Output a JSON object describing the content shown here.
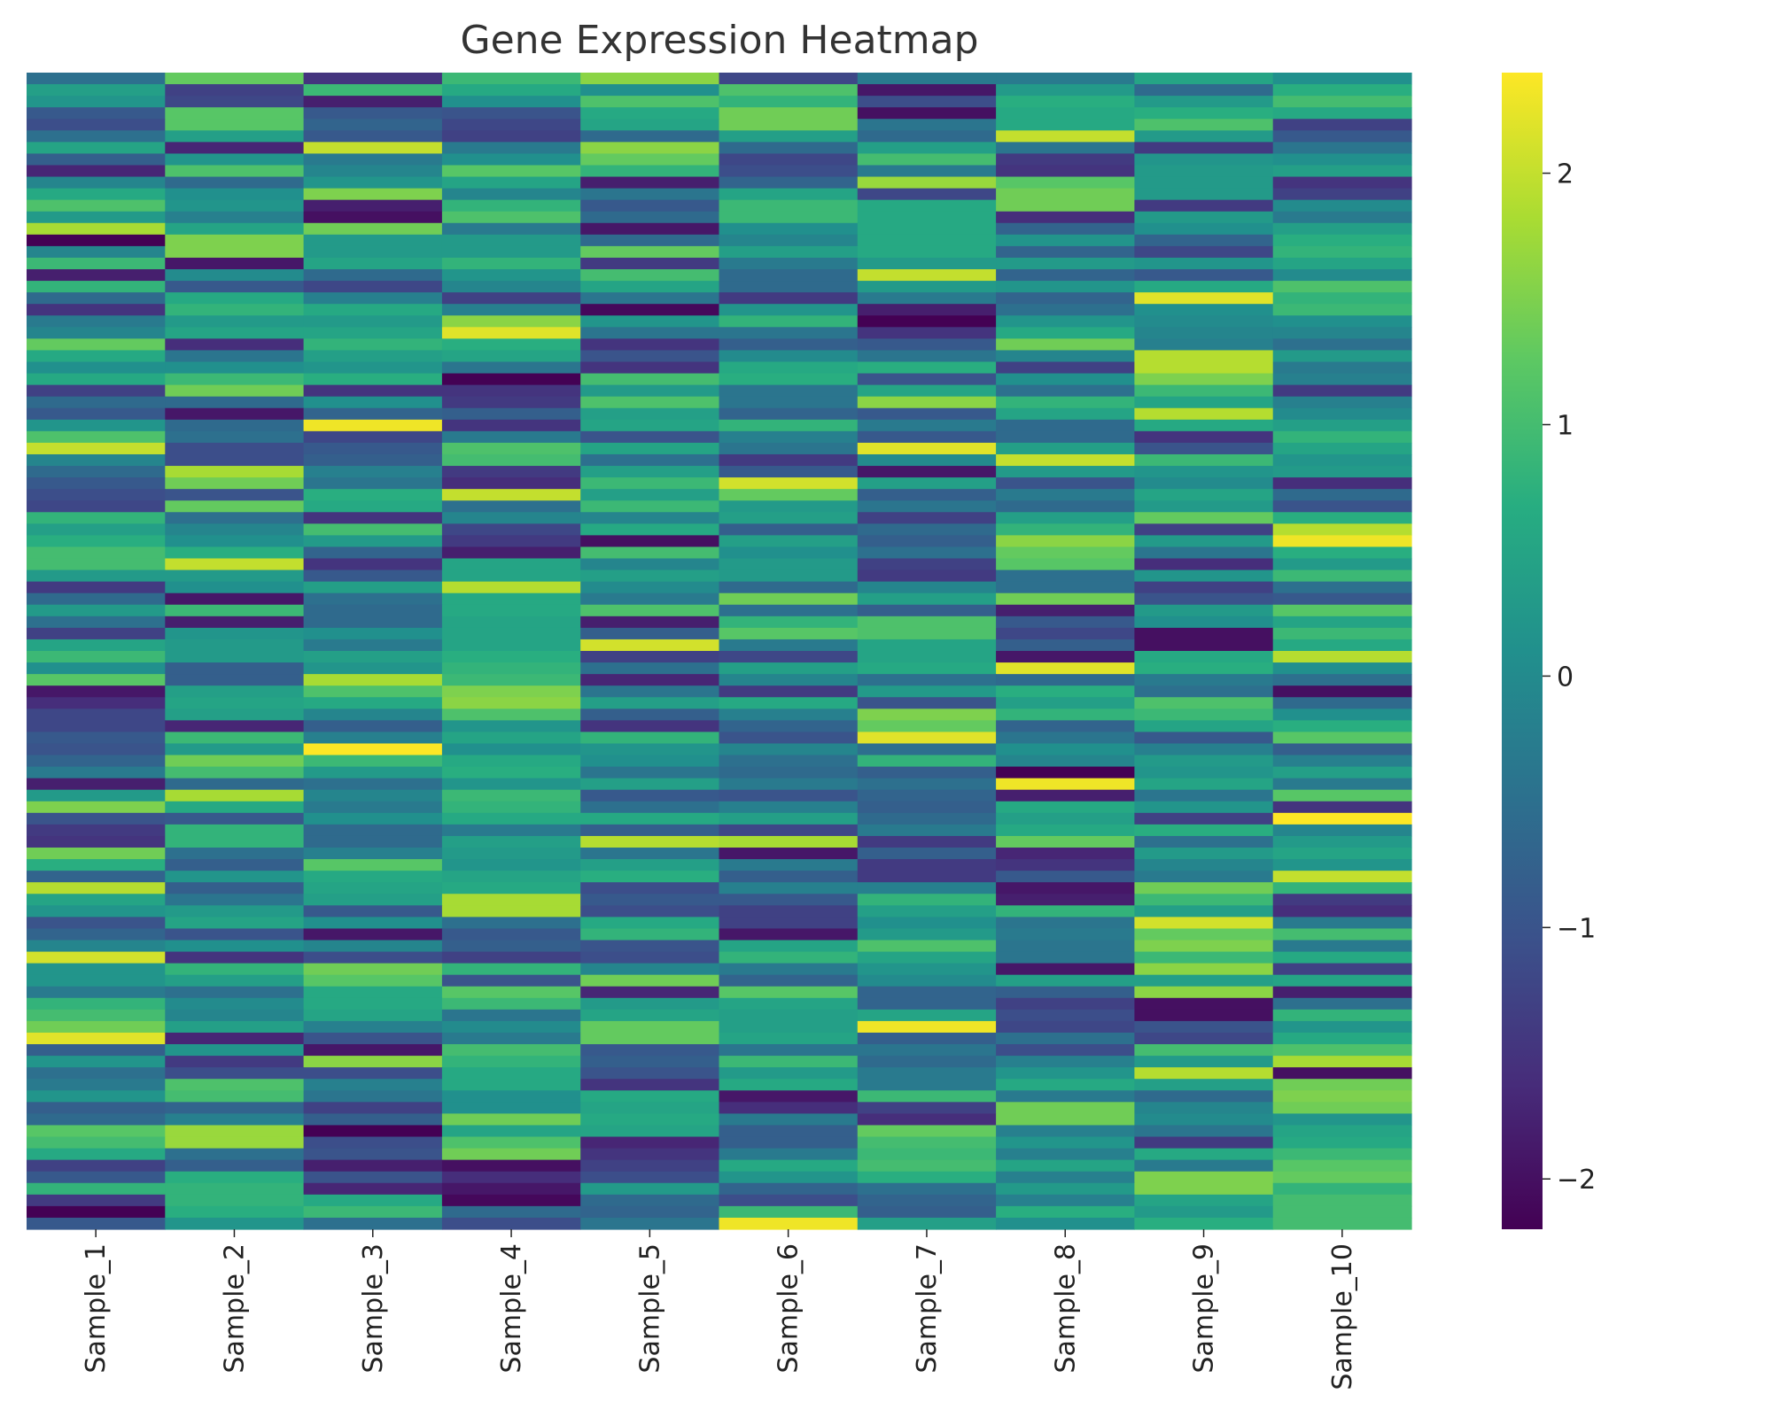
{
  "chart_data": {
    "type": "heatmap",
    "title": "Gene Expression Heatmap",
    "xlabel": "",
    "ylabel": "",
    "colormap": "viridis",
    "colorbar": {
      "vmin": -2.2,
      "vmax": 2.4,
      "ticks": [
        {
          "value": 2,
          "label": "2"
        },
        {
          "value": 1,
          "label": "1"
        },
        {
          "value": 0,
          "label": "0"
        },
        {
          "value": -1,
          "label": "−1"
        },
        {
          "value": -2,
          "label": "−2"
        }
      ]
    },
    "columns": [
      "Sample_1",
      "Sample_2",
      "Sample_3",
      "Sample_4",
      "Sample_5",
      "Sample_6",
      "Sample_7",
      "Sample_8",
      "Sample_9",
      "Sample_10"
    ],
    "row_count": 100,
    "values": [
      [
        -0.5,
        1.3,
        -1.5,
        0.9,
        1.6,
        -1.2,
        -0.3,
        -0.3,
        0.5,
        0.1
      ],
      [
        0.4,
        -1.3,
        0.9,
        0.6,
        0.1,
        1.1,
        -1.9,
        0.3,
        -0.6,
        0.7
      ],
      [
        0.2,
        -1.2,
        -1.8,
        0.1,
        1.1,
        0.8,
        -1.1,
        0.7,
        0.3,
        1.0
      ],
      [
        -0.9,
        1.2,
        -0.9,
        -1.0,
        0.6,
        1.4,
        -2.0,
        0.6,
        0.7,
        0.6
      ],
      [
        -1.1,
        1.2,
        -0.7,
        -1.2,
        0.5,
        1.4,
        -0.4,
        0.6,
        1.1,
        -1.3
      ],
      [
        -0.5,
        0.4,
        -0.9,
        -1.3,
        -0.6,
        0.4,
        -0.6,
        2.0,
        0.3,
        -0.9
      ],
      [
        0.5,
        -1.7,
        2.0,
        -0.3,
        1.6,
        -0.6,
        0.4,
        -0.4,
        -1.4,
        -0.4
      ],
      [
        -0.8,
        0.2,
        -0.3,
        0.1,
        1.3,
        -1.2,
        1.0,
        -1.4,
        0.2,
        0.1
      ],
      [
        -1.7,
        1.1,
        -0.1,
        1.2,
        0.8,
        -1.1,
        -0.3,
        -1.5,
        0.3,
        0.4
      ],
      [
        -0.1,
        -0.6,
        0.2,
        0.5,
        -1.8,
        -0.7,
        1.7,
        1.2,
        0.3,
        -1.5
      ],
      [
        0.6,
        0.1,
        1.5,
        -0.1,
        -0.4,
        0.5,
        -1.2,
        1.4,
        0.3,
        -1.3
      ],
      [
        1.1,
        0.2,
        -1.8,
        0.8,
        -0.9,
        0.9,
        0.6,
        1.4,
        -1.4,
        0.0
      ],
      [
        0.3,
        -0.2,
        -2.0,
        1.1,
        -0.6,
        0.9,
        0.6,
        -1.6,
        0.3,
        -0.3
      ],
      [
        1.8,
        0.5,
        1.4,
        -0.3,
        -1.9,
        0.1,
        0.6,
        -0.7,
        0.1,
        0.4
      ],
      [
        -2.2,
        1.5,
        0.3,
        0.3,
        -0.6,
        -0.1,
        0.6,
        0.2,
        -0.7,
        0.7
      ],
      [
        -0.1,
        1.5,
        0.3,
        0.3,
        1.3,
        0.4,
        0.6,
        -0.7,
        -1.2,
        0.8
      ],
      [
        0.9,
        -1.9,
        0.5,
        0.8,
        -1.4,
        -0.3,
        0.3,
        0.3,
        0.2,
        0.5
      ],
      [
        -1.8,
        0.0,
        -0.6,
        0.2,
        1.0,
        -0.6,
        2.0,
        -0.7,
        -0.9,
        0.0
      ],
      [
        0.8,
        -0.9,
        -1.2,
        -0.1,
        0.5,
        -0.6,
        0.3,
        0.2,
        0.6,
        1.1
      ],
      [
        -0.6,
        0.6,
        -0.2,
        -1.3,
        -0.4,
        -1.4,
        -0.3,
        -0.7,
        2.2,
        0.8
      ],
      [
        -1.5,
        0.8,
        0.6,
        -0.2,
        -2.1,
        0.2,
        -1.8,
        -0.5,
        0.1,
        0.9
      ],
      [
        -0.3,
        0.3,
        0.3,
        1.6,
        0.2,
        0.8,
        -2.2,
        0.2,
        0.0,
        0.1
      ],
      [
        -0.1,
        0.5,
        0.5,
        2.2,
        -0.4,
        -0.4,
        -1.5,
        0.6,
        -0.1,
        -0.1
      ],
      [
        1.3,
        -1.6,
        0.8,
        0.7,
        -1.5,
        -0.8,
        -0.9,
        1.4,
        -0.2,
        -0.5
      ],
      [
        0.6,
        -0.4,
        0.4,
        0.5,
        -1.0,
        0.0,
        -0.4,
        -0.1,
        1.9,
        0.3
      ],
      [
        0.1,
        0.1,
        0.2,
        -0.4,
        -1.5,
        0.6,
        0.7,
        -1.3,
        1.9,
        -0.3
      ],
      [
        0.6,
        0.9,
        0.7,
        -2.2,
        1.0,
        0.7,
        -1.0,
        0.1,
        1.5,
        -0.2
      ],
      [
        -1.3,
        1.4,
        -1.5,
        -1.5,
        0.3,
        -0.4,
        0.5,
        -0.5,
        0.9,
        -1.4
      ],
      [
        -0.6,
        -0.6,
        0.1,
        -1.4,
        1.1,
        -0.4,
        1.6,
        0.8,
        0.5,
        -0.2
      ],
      [
        -0.9,
        -1.9,
        -0.7,
        -0.8,
        0.4,
        -0.7,
        -0.9,
        0.5,
        1.9,
        0.0
      ],
      [
        0.2,
        -0.6,
        2.3,
        -1.5,
        0.5,
        0.8,
        -0.3,
        -0.6,
        0.6,
        0.4
      ],
      [
        1.1,
        -0.5,
        -1.2,
        -0.3,
        -1.0,
        -0.2,
        -0.9,
        -0.6,
        -1.5,
        0.8
      ],
      [
        2.0,
        -1.1,
        -0.9,
        1.1,
        0.5,
        -0.4,
        2.2,
        0.4,
        -1.0,
        0.5
      ],
      [
        -0.1,
        -1.1,
        -0.8,
        1.0,
        -0.5,
        -1.4,
        0.0,
        2.0,
        0.9,
        0.2
      ],
      [
        -0.6,
        1.8,
        -0.2,
        -1.4,
        0.4,
        -0.9,
        -1.9,
        0.3,
        0.2,
        0.3
      ],
      [
        -0.9,
        1.4,
        -0.4,
        -1.6,
        0.9,
        2.1,
        0.4,
        -1.0,
        0.0,
        -1.6
      ],
      [
        -1.1,
        -1.0,
        0.7,
        2.0,
        0.4,
        1.3,
        -0.8,
        -0.3,
        0.5,
        -0.6
      ],
      [
        -1.2,
        1.3,
        0.6,
        -0.5,
        0.9,
        0.3,
        -0.4,
        -0.6,
        0.3,
        -1.0
      ],
      [
        0.8,
        -0.5,
        -1.5,
        -0.1,
        -0.1,
        0.4,
        -1.3,
        0.4,
        1.3,
        0.7
      ],
      [
        0.4,
        -0.1,
        1.0,
        -1.2,
        0.6,
        -0.8,
        -0.6,
        0.8,
        -1.3,
        1.9
      ],
      [
        0.7,
        0.1,
        0.3,
        -1.4,
        -2.0,
        0.4,
        -0.8,
        1.6,
        0.3,
        2.3
      ],
      [
        1.0,
        0.7,
        -0.7,
        -1.8,
        1.0,
        0.1,
        -0.5,
        1.3,
        -0.4,
        0.7
      ],
      [
        1.0,
        2.0,
        -1.5,
        0.5,
        -0.1,
        0.3,
        -1.3,
        1.2,
        -1.6,
        0.3
      ],
      [
        0.3,
        0.3,
        -0.9,
        0.5,
        0.4,
        0.3,
        -1.4,
        -0.5,
        0.2,
        0.9
      ],
      [
        -1.4,
        0.1,
        0.4,
        1.9,
        0.0,
        -0.6,
        -0.1,
        -0.5,
        -1.3,
        -0.5
      ],
      [
        -0.6,
        -1.9,
        -0.5,
        0.6,
        -0.3,
        1.4,
        0.4,
        1.4,
        -1.0,
        -0.9
      ],
      [
        0.3,
        0.9,
        -0.6,
        0.6,
        1.1,
        -0.5,
        -0.8,
        -1.8,
        0.3,
        1.2
      ],
      [
        -0.5,
        -1.8,
        -0.6,
        0.5,
        -1.8,
        0.8,
        1.1,
        -0.9,
        0.1,
        0.5
      ],
      [
        -1.3,
        0.2,
        0.1,
        0.5,
        -0.8,
        1.2,
        1.1,
        -1.2,
        -2.0,
        0.9
      ],
      [
        0.5,
        0.3,
        -0.3,
        0.5,
        2.1,
        -0.3,
        0.5,
        -0.8,
        -2.0,
        0.6
      ],
      [
        0.9,
        0.3,
        0.4,
        0.7,
        -1.3,
        -1.2,
        0.5,
        -1.9,
        0.6,
        1.9
      ],
      [
        0.1,
        -0.8,
        0.2,
        0.8,
        -0.5,
        0.4,
        0.6,
        2.2,
        0.7,
        0.1
      ],
      [
        1.2,
        -0.8,
        1.8,
        0.9,
        -1.7,
        -0.1,
        -0.5,
        -0.6,
        -0.3,
        -0.5
      ],
      [
        -1.9,
        0.4,
        1.1,
        1.5,
        -0.4,
        -1.4,
        0.3,
        0.7,
        -0.5,
        -2.0
      ],
      [
        -1.6,
        0.5,
        0.6,
        1.6,
        0.4,
        0.6,
        -1.0,
        0.4,
        1.1,
        -0.6
      ],
      [
        -1.2,
        0.4,
        -0.1,
        1.1,
        -0.8,
        -0.2,
        1.5,
        0.8,
        0.9,
        0.1
      ],
      [
        -1.2,
        -1.7,
        -0.8,
        0.2,
        -1.5,
        -0.7,
        1.3,
        -0.7,
        0.5,
        0.7
      ],
      [
        -0.9,
        0.9,
        -0.2,
        0.5,
        0.8,
        -1.0,
        2.2,
        -0.4,
        -0.9,
        1.2
      ],
      [
        -1.0,
        0.3,
        2.4,
        0.1,
        0.2,
        -0.1,
        -0.5,
        0.1,
        -0.2,
        -0.8
      ],
      [
        -0.7,
        1.4,
        0.9,
        0.6,
        0.1,
        -0.5,
        0.8,
        -0.1,
        0.3,
        -0.2
      ],
      [
        -0.3,
        1.0,
        0.3,
        0.7,
        -0.4,
        -0.6,
        -0.8,
        -2.2,
        0.2,
        0.4
      ],
      [
        -1.8,
        -0.6,
        -0.5,
        0.2,
        0.4,
        -0.3,
        -0.5,
        2.3,
        0.5,
        -0.3
      ],
      [
        0.3,
        1.8,
        -0.1,
        0.9,
        -0.9,
        -1.0,
        -0.7,
        -1.8,
        -0.4,
        1.2
      ],
      [
        1.5,
        0.6,
        -0.3,
        0.8,
        -0.5,
        -0.2,
        -0.8,
        0.6,
        0.2,
        -1.5
      ],
      [
        -1.0,
        -0.9,
        0.1,
        0.6,
        0.6,
        0.4,
        -0.6,
        0.4,
        -1.3,
        2.4
      ],
      [
        -1.4,
        0.8,
        -0.6,
        -0.3,
        -0.8,
        -1.2,
        -0.3,
        0.6,
        0.7,
        -0.1
      ],
      [
        -1.5,
        0.8,
        -0.6,
        0.4,
        1.9,
        1.8,
        -1.4,
        1.3,
        -0.5,
        0.3
      ],
      [
        1.4,
        -0.5,
        -0.2,
        0.3,
        -0.4,
        -1.9,
        -0.8,
        -1.7,
        0.3,
        0.5
      ],
      [
        0.7,
        -0.8,
        1.2,
        0.2,
        0.4,
        -0.3,
        -1.4,
        -1.5,
        -0.1,
        0.2
      ],
      [
        -0.7,
        0.2,
        0.6,
        0.5,
        0.7,
        -0.8,
        -1.4,
        -0.9,
        -0.3,
        2.0
      ],
      [
        1.9,
        -0.8,
        0.5,
        0.6,
        -1.1,
        -0.2,
        -0.2,
        -1.9,
        1.4,
        0.8
      ],
      [
        0.5,
        -0.4,
        0.4,
        1.8,
        -0.9,
        -0.9,
        0.8,
        -1.8,
        0.9,
        -1.4
      ],
      [
        0.2,
        0.3,
        -0.9,
        1.8,
        -1.1,
        -1.3,
        0.4,
        0.8,
        0.4,
        -1.6
      ],
      [
        -1.0,
        0.5,
        0.1,
        -0.5,
        0.6,
        -1.3,
        0.1,
        -0.4,
        2.1,
        -0.3
      ],
      [
        -0.7,
        -1.0,
        -1.9,
        -0.9,
        0.8,
        -1.9,
        0.3,
        -0.3,
        1.3,
        1.0
      ],
      [
        -0.1,
        0.1,
        -0.1,
        -0.8,
        -1.0,
        0.5,
        1.1,
        -0.4,
        1.5,
        -0.3
      ],
      [
        2.1,
        -1.5,
        -1.1,
        -1.3,
        -1.1,
        0.8,
        0.5,
        -0.4,
        0.9,
        0.6
      ],
      [
        0.2,
        0.8,
        1.4,
        0.8,
        -0.1,
        -0.3,
        0.2,
        -1.9,
        1.6,
        -1.3
      ],
      [
        0.2,
        0.4,
        1.2,
        -1.0,
        1.4,
        -0.7,
        0.0,
        0.4,
        0.4,
        0.5
      ],
      [
        -0.3,
        -0.5,
        0.6,
        1.2,
        -1.7,
        1.2,
        -0.7,
        -0.8,
        1.6,
        -1.8
      ],
      [
        0.8,
        0.0,
        0.6,
        0.9,
        0.3,
        0.5,
        -0.7,
        -1.3,
        -2.0,
        -0.5
      ],
      [
        1.0,
        -0.1,
        0.5,
        -0.4,
        0.5,
        0.4,
        0.5,
        -1.1,
        -2.0,
        0.8
      ],
      [
        1.4,
        0.4,
        -0.2,
        0.0,
        1.3,
        0.4,
        2.3,
        -1.2,
        -1.0,
        0.2
      ],
      [
        2.2,
        -1.7,
        -1.0,
        -0.3,
        1.3,
        0.5,
        -0.8,
        -0.5,
        -1.2,
        0.6
      ],
      [
        -0.8,
        0.2,
        -1.9,
        1.0,
        -0.9,
        -0.4,
        -0.4,
        -1.1,
        1.0,
        1.1
      ],
      [
        0.2,
        -1.4,
        1.6,
        0.8,
        -0.8,
        0.9,
        -0.6,
        -0.2,
        0.3,
        1.8
      ],
      [
        -0.5,
        -1.1,
        -1.1,
        0.6,
        -1.0,
        0.3,
        -0.3,
        0.2,
        1.9,
        -2.0
      ],
      [
        -0.3,
        1.1,
        -0.2,
        0.6,
        -1.5,
        0.6,
        -0.3,
        0.6,
        0.4,
        1.4
      ],
      [
        0.2,
        1.0,
        -0.4,
        0.1,
        0.6,
        -1.9,
        0.9,
        -0.3,
        -0.6,
        1.5
      ],
      [
        -0.8,
        -0.7,
        -1.3,
        0.1,
        0.5,
        -1.6,
        -1.3,
        1.4,
        -0.1,
        1.4
      ],
      [
        -0.6,
        -0.2,
        -0.8,
        1.4,
        0.6,
        -0.3,
        -1.6,
        1.4,
        0.0,
        0.2
      ],
      [
        1.2,
        1.7,
        -2.2,
        0.5,
        0.5,
        -0.8,
        1.3,
        -0.2,
        -0.4,
        0.5
      ],
      [
        1.0,
        1.7,
        -1.1,
        1.1,
        -1.7,
        -0.8,
        1.0,
        0.2,
        -1.4,
        0.6
      ],
      [
        0.6,
        -0.5,
        -1.0,
        1.4,
        -1.5,
        -0.3,
        0.9,
        -0.2,
        0.6,
        0.9
      ],
      [
        -1.3,
        -0.8,
        -1.8,
        -2.0,
        -1.3,
        0.6,
        1.0,
        0.5,
        -0.3,
        1.2
      ],
      [
        -0.9,
        0.7,
        -1.0,
        -1.6,
        -1.1,
        0.2,
        0.7,
        -0.2,
        1.5,
        1.3
      ],
      [
        0.8,
        0.8,
        -1.7,
        -1.9,
        0.3,
        -0.7,
        -0.5,
        0.3,
        1.5,
        0.8
      ],
      [
        -1.4,
        0.8,
        0.6,
        -2.1,
        -0.6,
        -1.1,
        -0.7,
        -0.2,
        0.5,
        1.0
      ],
      [
        -2.2,
        0.7,
        0.9,
        -0.6,
        -0.7,
        0.9,
        -0.8,
        0.7,
        0.3,
        1.0
      ],
      [
        -0.9,
        0.2,
        -0.5,
        -1.1,
        -0.4,
        2.3,
        0.4,
        0.1,
        0.7,
        1.0
      ]
    ]
  }
}
